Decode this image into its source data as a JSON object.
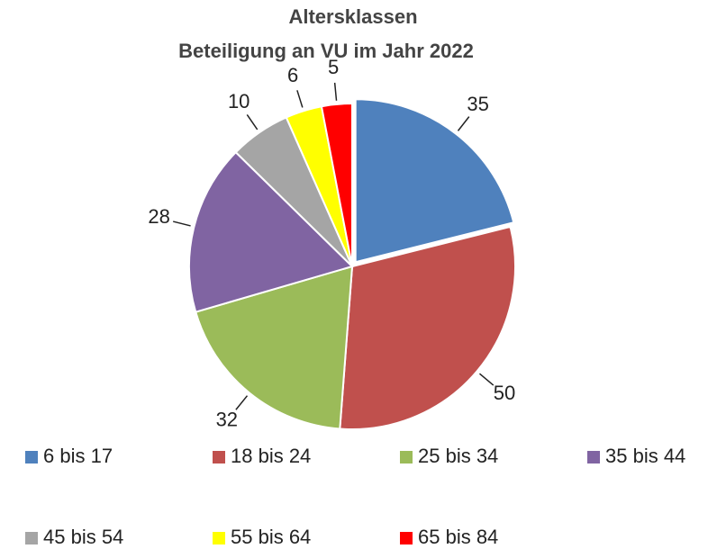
{
  "chart_data": {
    "type": "pie",
    "title": "Altersklassen",
    "subtitle": "Beteiligung an VU im Jahr 2022",
    "categories": [
      "6 bis 17",
      "18 bis 24",
      "25 bis 34",
      "35 bis 44",
      "45 bis 54",
      "55 bis 64",
      "65 bis 84"
    ],
    "values": [
      35,
      50,
      32,
      28,
      10,
      6,
      5
    ],
    "colors": [
      "#4f81bd",
      "#c0504d",
      "#9bbb59",
      "#8064a2",
      "#a5a5a5",
      "#ffff00",
      "#ff0000"
    ],
    "legend": "bottom"
  }
}
